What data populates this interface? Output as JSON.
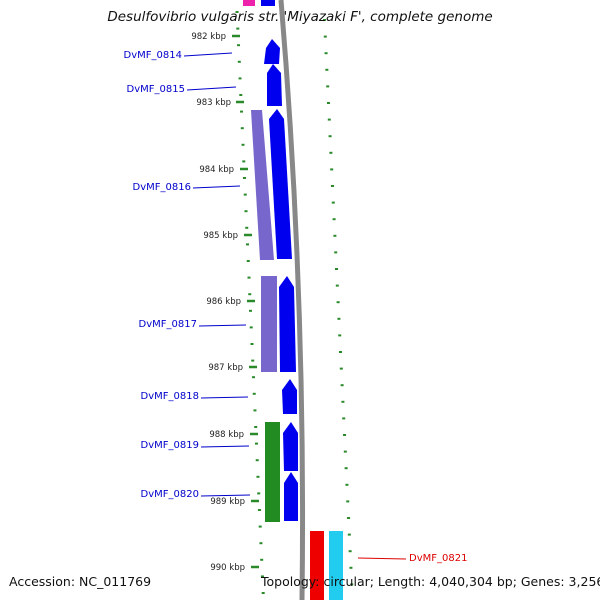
{
  "title": "Desulfovibrio vulgaris str. 'Miyazaki F', complete genome",
  "accession": "Accession: NC_011769",
  "summary": "Topology: circular; Length: 4,040,304 bp; Genes: 3,256",
  "colors": {
    "forward_cds": "#0000ee",
    "feature_purple": "#7766cc",
    "feature_green": "#228b22",
    "feature_red": "#ee0000",
    "feature_cyan": "#22ccee",
    "feature_magenta": "#ee22aa",
    "backbone": "#888888",
    "ticks": "#2a8a2a",
    "gene_label_blue": "#0000cc",
    "gene_label_red": "#dd0000"
  },
  "kbp_labels": [
    "982 kbp",
    "983 kbp",
    "984 kbp",
    "985 kbp",
    "986 kbp",
    "987 kbp",
    "988 kbp",
    "989 kbp",
    "990 kbp"
  ],
  "gene_labels": [
    "DvMF_0814",
    "DvMF_0815",
    "DvMF_0816",
    "DvMF_0817",
    "DvMF_0818",
    "DvMF_0819",
    "DvMF_0820",
    "DvMF_0821"
  ]
}
